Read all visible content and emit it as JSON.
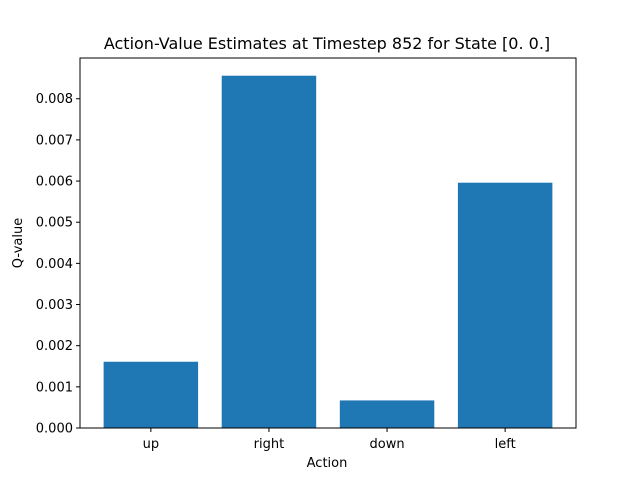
{
  "chart_data": {
    "type": "bar",
    "title": "Action-Value Estimates at Timestep 852 for State [0. 0.]",
    "xlabel": "Action",
    "ylabel": "Q-value",
    "categories": [
      "up",
      "right",
      "down",
      "left"
    ],
    "values": [
      0.00161,
      0.00856,
      0.00067,
      0.00596
    ],
    "ylim": [
      0,
      0.00899
    ],
    "yticks": [
      "0.000",
      "0.001",
      "0.002",
      "0.003",
      "0.004",
      "0.005",
      "0.006",
      "0.007",
      "0.008"
    ],
    "bar_color": "#1f77b4",
    "grid": false,
    "legend": "none"
  }
}
